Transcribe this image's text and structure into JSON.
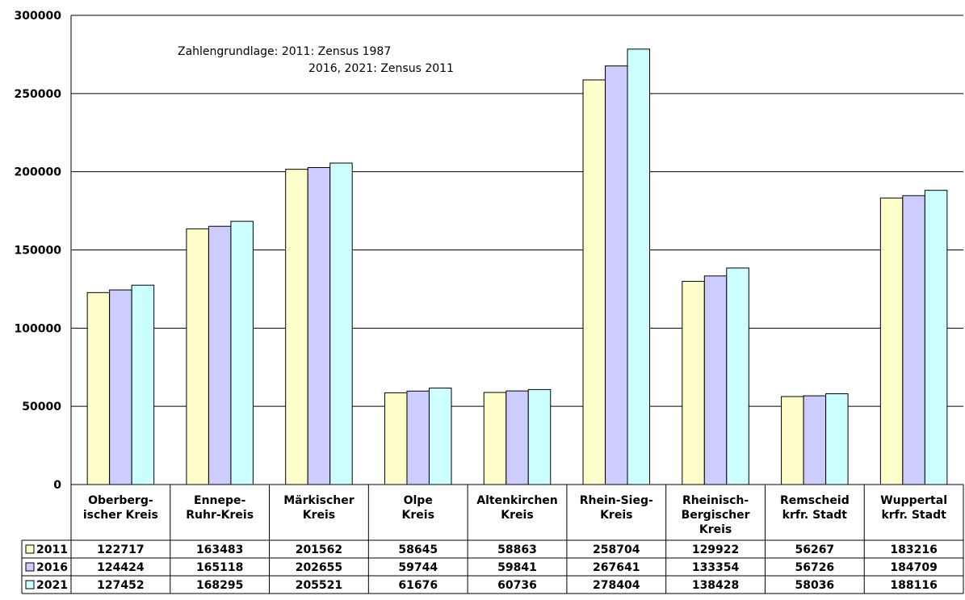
{
  "chart_data": {
    "type": "bar",
    "annotation": [
      "Zahlengrundlage:  2011: Zensus 1987",
      "2016, 2021: Zensus 2011"
    ],
    "categories": [
      [
        "Oberberg-",
        "ischer Kreis"
      ],
      [
        "Ennepe-",
        "Ruhr-Kreis"
      ],
      [
        "Märkischer",
        "Kreis"
      ],
      [
        "Olpe",
        "Kreis"
      ],
      [
        "Altenkirchen",
        "Kreis"
      ],
      [
        "Rhein-Sieg-",
        "Kreis"
      ],
      [
        "Rheinisch-",
        "Bergischer",
        "Kreis"
      ],
      [
        "Remscheid",
        "krfr. Stadt"
      ],
      [
        "Wuppertal",
        "krfr. Stadt"
      ]
    ],
    "series": [
      {
        "name": "2011",
        "color": "#ffffcc",
        "values": [
          122717,
          163483,
          201562,
          58645,
          58863,
          258704,
          129922,
          56267,
          183216
        ]
      },
      {
        "name": "2016",
        "color": "#ccccff",
        "values": [
          124424,
          165118,
          202655,
          59744,
          59841,
          267641,
          133354,
          56726,
          184709
        ]
      },
      {
        "name": "2021",
        "color": "#ccffff",
        "values": [
          127452,
          168295,
          205521,
          61676,
          60736,
          278404,
          138428,
          58036,
          188116
        ]
      }
    ],
    "yticks": [
      0,
      50000,
      100000,
      150000,
      200000,
      250000,
      300000
    ],
    "ylim": [
      0,
      300000
    ],
    "grid": true,
    "legend": "data-table-left"
  }
}
